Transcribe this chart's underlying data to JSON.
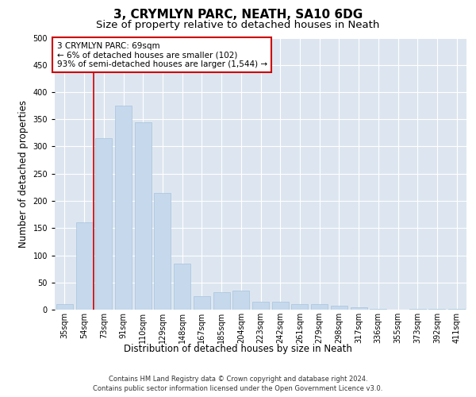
{
  "title1": "3, CRYMLYN PARC, NEATH, SA10 6DG",
  "title2": "Size of property relative to detached houses in Neath",
  "xlabel": "Distribution of detached houses by size in Neath",
  "ylabel": "Number of detached properties",
  "categories": [
    "35sqm",
    "54sqm",
    "73sqm",
    "91sqm",
    "110sqm",
    "129sqm",
    "148sqm",
    "167sqm",
    "185sqm",
    "204sqm",
    "223sqm",
    "242sqm",
    "261sqm",
    "279sqm",
    "298sqm",
    "317sqm",
    "336sqm",
    "355sqm",
    "373sqm",
    "392sqm",
    "411sqm"
  ],
  "values": [
    10,
    160,
    315,
    375,
    345,
    215,
    85,
    25,
    32,
    35,
    15,
    15,
    10,
    10,
    8,
    5,
    2,
    0.5,
    2,
    2,
    2
  ],
  "bar_color": "#c5d8ec",
  "bar_edge_color": "#a8c4dc",
  "vline_x": 1.5,
  "vline_color": "#cc0000",
  "annotation_lines": [
    "3 CRYMLYN PARC: 69sqm",
    "← 6% of detached houses are smaller (102)",
    "93% of semi-detached houses are larger (1,544) →"
  ],
  "annotation_box_color": "#ffffff",
  "annotation_box_edge": "#cc0000",
  "plot_bg_color": "#dde6f0",
  "ylim": [
    0,
    500
  ],
  "yticks": [
    0,
    50,
    100,
    150,
    200,
    250,
    300,
    350,
    400,
    450,
    500
  ],
  "footer1": "Contains HM Land Registry data © Crown copyright and database right 2024.",
  "footer2": "Contains public sector information licensed under the Open Government Licence v3.0.",
  "title1_fontsize": 11,
  "title2_fontsize": 9.5,
  "axis_label_fontsize": 8.5,
  "tick_fontsize": 7,
  "annotation_fontsize": 7.5,
  "footer_fontsize": 6
}
